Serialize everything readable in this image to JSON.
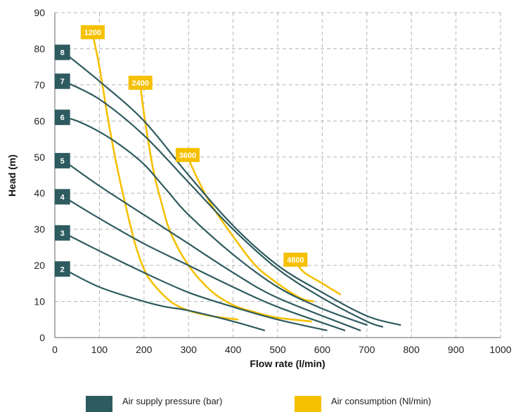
{
  "chart_data": {
    "type": "line",
    "xlabel": "Flow rate (l/min)",
    "ylabel": "Head (m)",
    "xlim": [
      0,
      1000
    ],
    "ylim": [
      0,
      90
    ],
    "x_ticks": [
      "0",
      "100",
      "200",
      "300",
      "400",
      "500",
      "600",
      "700",
      "800",
      "900",
      "1000"
    ],
    "y_ticks": [
      "0",
      "10",
      "20",
      "30",
      "40",
      "50",
      "60",
      "70",
      "80",
      "90"
    ],
    "grid": true,
    "legend": [
      {
        "label": "Air supply pressure (bar)",
        "color": "#2e5b5f"
      },
      {
        "label": "Air consumption (Nl/min)",
        "color": "#f5c000"
      }
    ],
    "pressure_series": [
      {
        "name": "2",
        "points": [
          [
            20,
            19
          ],
          [
            100,
            14
          ],
          [
            200,
            10
          ],
          [
            250,
            8.5
          ],
          [
            300,
            7.5
          ],
          [
            400,
            4.5
          ],
          [
            470,
            2
          ]
        ]
      },
      {
        "name": "3",
        "points": [
          [
            20,
            29
          ],
          [
            100,
            24
          ],
          [
            200,
            18
          ],
          [
            300,
            12.5
          ],
          [
            400,
            8.5
          ],
          [
            500,
            5
          ],
          [
            610,
            2
          ]
        ]
      },
      {
        "name": "4",
        "points": [
          [
            20,
            39
          ],
          [
            100,
            33
          ],
          [
            200,
            26
          ],
          [
            300,
            20
          ],
          [
            400,
            14
          ],
          [
            500,
            8.5
          ],
          [
            650,
            2
          ]
        ]
      },
      {
        "name": "5",
        "points": [
          [
            20,
            49
          ],
          [
            100,
            42
          ],
          [
            200,
            34
          ],
          [
            300,
            26
          ],
          [
            400,
            18
          ],
          [
            500,
            11
          ],
          [
            685,
            2
          ]
        ]
      },
      {
        "name": "6",
        "points": [
          [
            20,
            61
          ],
          [
            50,
            60
          ],
          [
            100,
            57
          ],
          [
            150,
            53
          ],
          [
            200,
            48
          ],
          [
            250,
            41
          ],
          [
            300,
            34
          ],
          [
            400,
            23
          ],
          [
            500,
            14
          ],
          [
            600,
            8
          ],
          [
            700,
            3.5
          ]
        ]
      },
      {
        "name": "7",
        "points": [
          [
            20,
            71
          ],
          [
            100,
            66
          ],
          [
            200,
            56
          ],
          [
            300,
            43
          ],
          [
            400,
            30
          ],
          [
            500,
            19
          ],
          [
            600,
            11
          ],
          [
            700,
            4.5
          ],
          [
            735,
            3
          ]
        ]
      },
      {
        "name": "8",
        "points": [
          [
            20,
            79
          ],
          [
            100,
            71
          ],
          [
            200,
            60
          ],
          [
            300,
            45
          ],
          [
            400,
            31
          ],
          [
            500,
            20
          ],
          [
            600,
            12.5
          ],
          [
            700,
            6
          ],
          [
            775,
            3.5
          ]
        ]
      }
    ],
    "consumption_series": [
      {
        "name": "1200",
        "points": [
          [
            85,
            84
          ],
          [
            100,
            75
          ],
          [
            120,
            60
          ],
          [
            140,
            47
          ],
          [
            160,
            36
          ],
          [
            180,
            26
          ],
          [
            200,
            19
          ],
          [
            220,
            15
          ],
          [
            260,
            10
          ],
          [
            300,
            7.5
          ],
          [
            350,
            6
          ],
          [
            410,
            5
          ]
        ]
      },
      {
        "name": "2400",
        "points": [
          [
            192,
            70
          ],
          [
            200,
            62
          ],
          [
            220,
            47
          ],
          [
            240,
            37
          ],
          [
            260,
            29
          ],
          [
            300,
            20
          ],
          [
            350,
            13
          ],
          [
            400,
            9
          ],
          [
            450,
            7
          ],
          [
            500,
            5.5
          ],
          [
            575,
            4.5
          ]
        ]
      },
      {
        "name": "3600",
        "points": [
          [
            298,
            50
          ],
          [
            320,
            44
          ],
          [
            350,
            37
          ],
          [
            400,
            28
          ],
          [
            450,
            20
          ],
          [
            500,
            15
          ],
          [
            550,
            11
          ],
          [
            580,
            10
          ]
        ]
      },
      {
        "name": "4800",
        "points": [
          [
            540,
            21
          ],
          [
            560,
            18
          ],
          [
            600,
            15
          ],
          [
            640,
            12
          ]
        ]
      }
    ],
    "colors": {
      "pressure": "#2e5b5f",
      "consumption": "#f5c000",
      "grid": "#b5b5b5",
      "axis": "#666666"
    }
  }
}
